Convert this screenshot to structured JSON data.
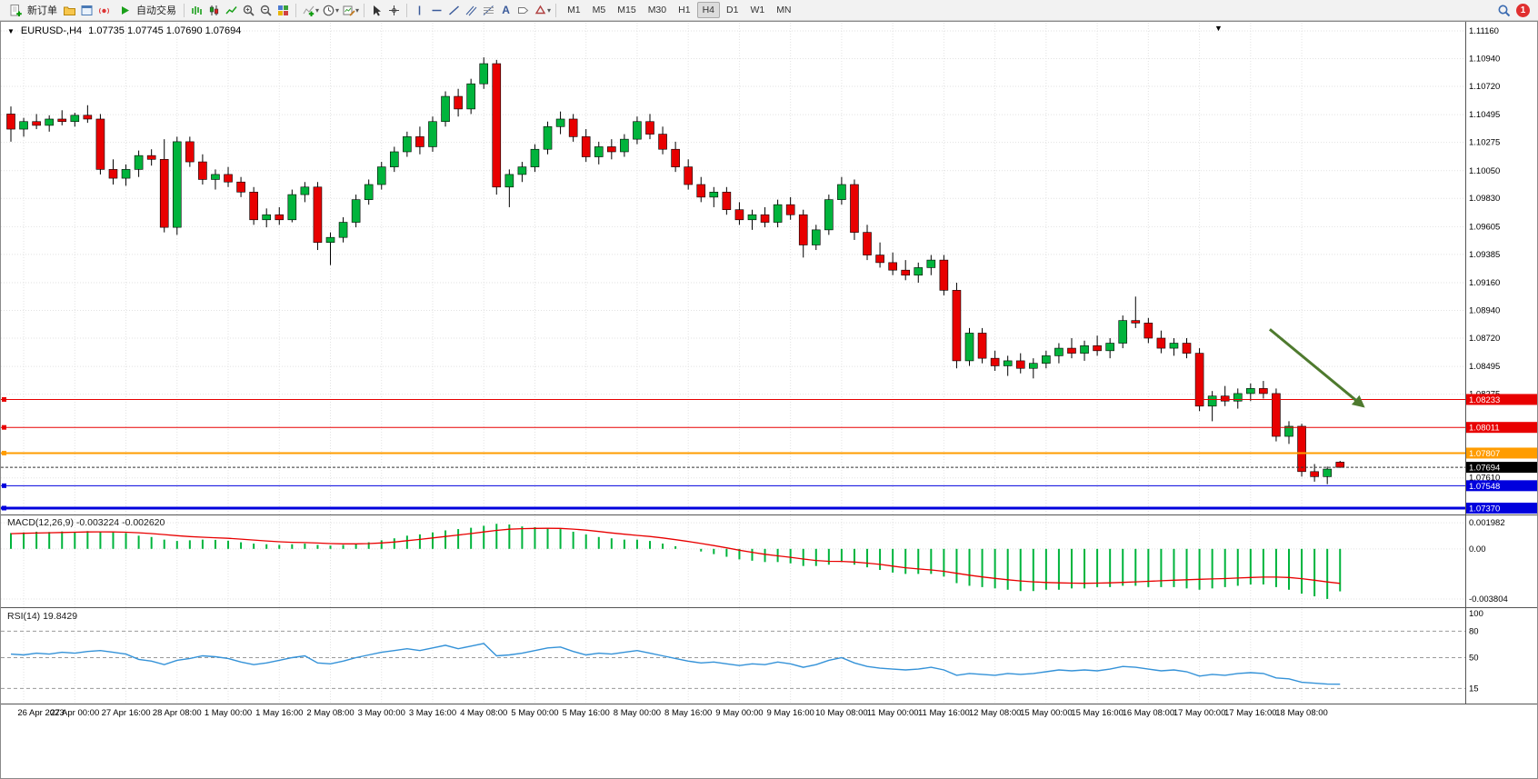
{
  "toolbar": {
    "new_order_label": "新订单",
    "autotrading_label": "自动交易",
    "timeframes": [
      "M1",
      "M5",
      "M15",
      "M30",
      "H1",
      "H4",
      "D1",
      "W1",
      "MN"
    ],
    "active_timeframe": "H4",
    "notification_badge": "1"
  },
  "chart": {
    "symbol_period": "EURUSD-,H4",
    "ohlc": "1.07735 1.07745 1.07690 1.07694",
    "macd_header": "MACD(12,26,9) -0.003224 -0.002620",
    "rsi_header": "RSI(14) 19.8429"
  },
  "chart_data": {
    "type": "candlestick",
    "symbol": "EURUSD-",
    "period": "H4",
    "colors": {
      "up": "#00b43c",
      "down": "#e80000",
      "macd_hist": "#00b43c",
      "macd_signal": "#e80000",
      "rsi_line": "#3492d8",
      "arrow": "#4e7a2e",
      "grid": "#e2e2e2",
      "axis_text": "#000000"
    },
    "main_ylim": [
      1.07341,
      1.11189
    ],
    "price_ticks": [
      "1.11160",
      "1.10940",
      "1.10720",
      "1.10495",
      "1.10275",
      "1.10050",
      "1.09830",
      "1.09605",
      "1.09385",
      "1.09160",
      "1.08940",
      "1.08720",
      "1.08495",
      "1.08275",
      "1.07610"
    ],
    "levels": [
      {
        "label": "1.08233",
        "price": 1.08233,
        "color": "#e80000",
        "width": 1
      },
      {
        "label": "1.08011",
        "price": 1.08011,
        "color": "#e80000",
        "width": 1
      },
      {
        "label": "1.07807",
        "price": 1.07807,
        "color": "#ff9c00",
        "width": 2
      },
      {
        "label": "1.07548",
        "price": 1.07548,
        "color": "#0000dd",
        "width": 1
      },
      {
        "label": "1.07370",
        "price": 1.0737,
        "color": "#0000dd",
        "width": 3
      }
    ],
    "current_price": {
      "label": "1.07694",
      "price": 1.07694
    },
    "arrow": {
      "from_index": 98.5,
      "from_price": 1.0879,
      "to_index": 105.8,
      "to_price": 1.0818
    },
    "x_labels": [
      "26 Apr 2023",
      "27 Apr 00:00",
      "27 Apr 16:00",
      "28 Apr 08:00",
      "1 May 00:00",
      "1 May 16:00",
      "2 May 08:00",
      "3 May 00:00",
      "3 May 16:00",
      "4 May 08:00",
      "5 May 00:00",
      "5 May 16:00",
      "8 May 00:00",
      "8 May 16:00",
      "9 May 00:00",
      "9 May 16:00",
      "10 May 08:00",
      "11 May 00:00",
      "11 May 16:00",
      "12 May 08:00",
      "15 May 00:00",
      "15 May 16:00",
      "16 May 08:00",
      "17 May 00:00",
      "17 May 16:00",
      "18 May 08:00"
    ],
    "x_label_offset": 1,
    "x_label_step": 4,
    "candles": [
      [
        1.105,
        1.1056,
        1.1028,
        1.1038
      ],
      [
        1.1038,
        1.1047,
        1.1032,
        1.1044
      ],
      [
        1.1044,
        1.105,
        1.1038,
        1.1041
      ],
      [
        1.1041,
        1.1049,
        1.1036,
        1.1046
      ],
      [
        1.1046,
        1.1053,
        1.1041,
        1.1044
      ],
      [
        1.1044,
        1.1051,
        1.104,
        1.1049
      ],
      [
        1.1049,
        1.1057,
        1.1043,
        1.1046
      ],
      [
        1.1046,
        1.105,
        1.1002,
        1.1006
      ],
      [
        1.1006,
        1.1014,
        1.0994,
        1.0999
      ],
      [
        1.0999,
        1.101,
        1.0993,
        1.1006
      ],
      [
        1.1006,
        1.1021,
        1.1,
        1.1017
      ],
      [
        1.1017,
        1.1022,
        1.1009,
        1.1014
      ],
      [
        1.1014,
        1.103,
        1.0956,
        1.096
      ],
      [
        1.096,
        1.1032,
        1.0954,
        1.1028
      ],
      [
        1.1028,
        1.1032,
        1.1008,
        1.1012
      ],
      [
        1.1012,
        1.1018,
        1.0994,
        1.0998
      ],
      [
        1.0998,
        1.1006,
        1.099,
        1.1002
      ],
      [
        1.1002,
        1.1008,
        1.0992,
        1.0996
      ],
      [
        1.0996,
        1.1,
        1.0984,
        1.0988
      ],
      [
        1.0988,
        1.0992,
        1.0962,
        1.0966
      ],
      [
        1.0966,
        1.0975,
        1.096,
        1.097
      ],
      [
        1.097,
        1.0976,
        1.0962,
        1.0966
      ],
      [
        1.0966,
        1.099,
        1.0964,
        1.0986
      ],
      [
        1.0986,
        1.0996,
        1.098,
        1.0992
      ],
      [
        1.0992,
        1.0996,
        1.0942,
        1.0948
      ],
      [
        1.0948,
        1.0956,
        1.093,
        1.0952
      ],
      [
        1.0952,
        1.0968,
        1.0948,
        1.0964
      ],
      [
        1.0964,
        1.0986,
        1.096,
        1.0982
      ],
      [
        1.0982,
        1.0998,
        1.0978,
        1.0994
      ],
      [
        1.0994,
        1.1012,
        1.099,
        1.1008
      ],
      [
        1.1008,
        1.1024,
        1.1004,
        1.102
      ],
      [
        1.102,
        1.1036,
        1.1016,
        1.1032
      ],
      [
        1.1032,
        1.104,
        1.1018,
        1.1024
      ],
      [
        1.1024,
        1.1048,
        1.102,
        1.1044
      ],
      [
        1.1044,
        1.1068,
        1.104,
        1.1064
      ],
      [
        1.1064,
        1.107,
        1.1048,
        1.1054
      ],
      [
        1.1054,
        1.1078,
        1.105,
        1.1074
      ],
      [
        1.1074,
        1.1095,
        1.107,
        1.109
      ],
      [
        1.109,
        1.1093,
        1.0986,
        1.0992
      ],
      [
        1.0992,
        1.1006,
        1.0976,
        1.1002
      ],
      [
        1.1002,
        1.1012,
        1.0996,
        1.1008
      ],
      [
        1.1008,
        1.1026,
        1.1004,
        1.1022
      ],
      [
        1.1022,
        1.1044,
        1.1018,
        1.104
      ],
      [
        1.104,
        1.1052,
        1.1034,
        1.1046
      ],
      [
        1.1046,
        1.105,
        1.1028,
        1.1032
      ],
      [
        1.1032,
        1.1038,
        1.1012,
        1.1016
      ],
      [
        1.1016,
        1.1028,
        1.101,
        1.1024
      ],
      [
        1.1024,
        1.103,
        1.1014,
        1.102
      ],
      [
        1.102,
        1.1034,
        1.1016,
        1.103
      ],
      [
        1.103,
        1.1048,
        1.1026,
        1.1044
      ],
      [
        1.1044,
        1.105,
        1.103,
        1.1034
      ],
      [
        1.1034,
        1.104,
        1.1018,
        1.1022
      ],
      [
        1.1022,
        1.1028,
        1.1004,
        1.1008
      ],
      [
        1.1008,
        1.1014,
        1.099,
        1.0994
      ],
      [
        1.0994,
        1.1,
        1.098,
        1.0984
      ],
      [
        1.0984,
        1.0992,
        1.0976,
        1.0988
      ],
      [
        1.0988,
        1.0992,
        1.097,
        1.0974
      ],
      [
        1.0974,
        1.098,
        1.0962,
        1.0966
      ],
      [
        1.0966,
        1.0974,
        1.0958,
        1.097
      ],
      [
        1.097,
        1.0976,
        1.096,
        1.0964
      ],
      [
        1.0964,
        1.0982,
        1.096,
        1.0978
      ],
      [
        1.0978,
        1.0984,
        1.0966,
        1.097
      ],
      [
        1.097,
        1.0974,
        1.0936,
        1.0946
      ],
      [
        1.0946,
        1.0962,
        1.0942,
        1.0958
      ],
      [
        1.0958,
        1.0986,
        1.0954,
        1.0982
      ],
      [
        1.0982,
        1.1,
        1.0978,
        1.0994
      ],
      [
        1.0994,
        1.0998,
        1.095,
        1.0956
      ],
      [
        1.0956,
        1.0962,
        1.0934,
        1.0938
      ],
      [
        1.0938,
        1.0948,
        1.0928,
        1.0932
      ],
      [
        1.0932,
        1.094,
        1.0922,
        1.0926
      ],
      [
        1.0926,
        1.0934,
        1.0918,
        1.0922
      ],
      [
        1.0922,
        1.0932,
        1.0916,
        1.0928
      ],
      [
        1.0928,
        1.0938,
        1.0922,
        1.0934
      ],
      [
        1.0934,
        1.0938,
        1.0906,
        1.091
      ],
      [
        1.091,
        1.0916,
        1.0848,
        1.0854
      ],
      [
        1.0854,
        1.088,
        1.085,
        1.0876
      ],
      [
        1.0876,
        1.088,
        1.0852,
        1.0856
      ],
      [
        1.0856,
        1.0862,
        1.0846,
        1.085
      ],
      [
        1.085,
        1.0858,
        1.0842,
        1.0854
      ],
      [
        1.0854,
        1.086,
        1.0844,
        1.0848
      ],
      [
        1.0848,
        1.0856,
        1.084,
        1.0852
      ],
      [
        1.0852,
        1.0862,
        1.0848,
        1.0858
      ],
      [
        1.0858,
        1.0868,
        1.0852,
        1.0864
      ],
      [
        1.0864,
        1.0872,
        1.0856,
        1.086
      ],
      [
        1.086,
        1.087,
        1.0854,
        1.0866
      ],
      [
        1.0866,
        1.0874,
        1.0858,
        1.0862
      ],
      [
        1.0862,
        1.0872,
        1.0856,
        1.0868
      ],
      [
        1.0868,
        1.089,
        1.0864,
        1.0886
      ],
      [
        1.0886,
        1.0905,
        1.088,
        1.0884
      ],
      [
        1.0884,
        1.0888,
        1.0868,
        1.0872
      ],
      [
        1.0872,
        1.0878,
        1.086,
        1.0864
      ],
      [
        1.0864,
        1.0872,
        1.0858,
        1.0868
      ],
      [
        1.0868,
        1.0872,
        1.0856,
        1.086
      ],
      [
        1.086,
        1.0864,
        1.0814,
        1.0818
      ],
      [
        1.0818,
        1.083,
        1.0806,
        1.0826
      ],
      [
        1.0826,
        1.0834,
        1.0818,
        1.0822
      ],
      [
        1.0822,
        1.0832,
        1.0816,
        1.0828
      ],
      [
        1.0828,
        1.0836,
        1.0822,
        1.0832
      ],
      [
        1.0832,
        1.0838,
        1.0824,
        1.0828
      ],
      [
        1.0828,
        1.0832,
        1.079,
        1.0794
      ],
      [
        1.0794,
        1.0806,
        1.0788,
        1.0802
      ],
      [
        1.0802,
        1.0804,
        1.0762,
        1.0766
      ],
      [
        1.0766,
        1.0772,
        1.0758,
        1.0762
      ],
      [
        1.0762,
        1.077,
        1.0756,
        1.0768
      ],
      [
        1.07735,
        1.07745,
        1.0769,
        1.07694
      ]
    ],
    "macd": {
      "ylim": [
        -0.00408,
        0.0024
      ],
      "axis_ticks": [
        0.001982,
        0,
        -0.003804
      ],
      "axis_labels": [
        "0.001982",
        "0.00",
        "-0.003804"
      ],
      "values": [
        0.0012,
        0.00125,
        0.0013,
        0.00128,
        0.00132,
        0.0013,
        0.00135,
        0.0013,
        0.00125,
        0.0012,
        0.001,
        0.0009,
        0.0007,
        0.0006,
        0.00065,
        0.0007,
        0.00068,
        0.00062,
        0.0005,
        0.0004,
        0.00035,
        0.0003,
        0.00035,
        0.0004,
        0.0003,
        0.00025,
        0.0003,
        0.0004,
        0.0005,
        0.00065,
        0.0008,
        0.001,
        0.0011,
        0.00125,
        0.0014,
        0.0015,
        0.0016,
        0.00175,
        0.0019,
        0.00185,
        0.0017,
        0.00165,
        0.0016,
        0.0015,
        0.0013,
        0.0011,
        0.0009,
        0.0008,
        0.0007,
        0.0007,
        0.0006,
        0.0004,
        0.0002,
        0,
        -0.0002,
        -0.0004,
        -0.0006,
        -0.0008,
        -0.0009,
        -0.001,
        -0.001,
        -0.0011,
        -0.0013,
        -0.0013,
        -0.0012,
        -0.001,
        -0.0012,
        -0.0014,
        -0.0016,
        -0.0018,
        -0.0019,
        -0.0019,
        -0.0019,
        -0.0021,
        -0.0026,
        -0.0028,
        -0.0029,
        -0.003,
        -0.0031,
        -0.0032,
        -0.0032,
        -0.0031,
        -0.0031,
        -0.003,
        -0.003,
        -0.0029,
        -0.0029,
        -0.0028,
        -0.0028,
        -0.0029,
        -0.0029,
        -0.0029,
        -0.003,
        -0.0031,
        -0.003,
        -0.0029,
        -0.0028,
        -0.0027,
        -0.0027,
        -0.0029,
        -0.0031,
        -0.0034,
        -0.0036,
        -0.0038,
        -0.003224
      ],
      "signal": [
        0.00115,
        0.00118,
        0.0012,
        0.00122,
        0.00124,
        0.00126,
        0.00128,
        0.00129,
        0.00128,
        0.00126,
        0.00122,
        0.00116,
        0.00108,
        0.001,
        0.00093,
        0.00088,
        0.00084,
        0.0008,
        0.00074,
        0.00067,
        0.0006,
        0.00054,
        0.0005,
        0.00048,
        0.00044,
        0.0004,
        0.00038,
        0.00038,
        0.0004,
        0.00045,
        0.00052,
        0.00062,
        0.00072,
        0.00083,
        0.00094,
        0.00105,
        0.00116,
        0.00128,
        0.0014,
        0.00149,
        0.00153,
        0.00155,
        0.00156,
        0.00155,
        0.0015,
        0.00142,
        0.00132,
        0.00121,
        0.00111,
        0.00102,
        0.00094,
        0.00083,
        0.0007,
        0.00056,
        0.00041,
        0.00025,
        8e-05,
        -0.0001,
        -0.00026,
        -0.00041,
        -0.00053,
        -0.00064,
        -0.00077,
        -0.00088,
        -0.00094,
        -0.00095,
        -0.001,
        -0.00108,
        -0.00118,
        -0.00131,
        -0.00143,
        -0.00152,
        -0.0016,
        -0.0017,
        -0.00185,
        -0.002,
        -0.00213,
        -0.00224,
        -0.00234,
        -0.00243,
        -0.0025,
        -0.00255,
        -0.00258,
        -0.0026,
        -0.00261,
        -0.0026,
        -0.00258,
        -0.00254,
        -0.0025,
        -0.00246,
        -0.00242,
        -0.00238,
        -0.00234,
        -0.00231,
        -0.00228,
        -0.00225,
        -0.00221,
        -0.00217,
        -0.00214,
        -0.00214,
        -0.00217,
        -0.00226,
        -0.00238,
        -0.00251,
        -0.00262
      ]
    },
    "rsi": {
      "ylim": [
        0,
        103
      ],
      "axis_ticks": [
        100,
        80,
        50,
        15
      ],
      "levels": [
        80,
        50,
        15
      ],
      "values": [
        54,
        53,
        55,
        54,
        56,
        55,
        57,
        58,
        56,
        54,
        48,
        46,
        42,
        47,
        49,
        52,
        51,
        49,
        45,
        42,
        44,
        47,
        50,
        52,
        44,
        43,
        46,
        50,
        53,
        56,
        58,
        60,
        58,
        61,
        64,
        60,
        63,
        66,
        52,
        53,
        55,
        58,
        61,
        62,
        57,
        53,
        55,
        54,
        56,
        58,
        55,
        52,
        49,
        46,
        44,
        45,
        43,
        41,
        43,
        42,
        45,
        43,
        39,
        42,
        47,
        50,
        44,
        40,
        38,
        37,
        36,
        37,
        39,
        36,
        30,
        32,
        31,
        30,
        32,
        31,
        32,
        34,
        36,
        35,
        36,
        35,
        37,
        40,
        39,
        37,
        35,
        36,
        34,
        29,
        31,
        30,
        32,
        33,
        32,
        27,
        26,
        22,
        21,
        20,
        19.8429
      ]
    }
  }
}
